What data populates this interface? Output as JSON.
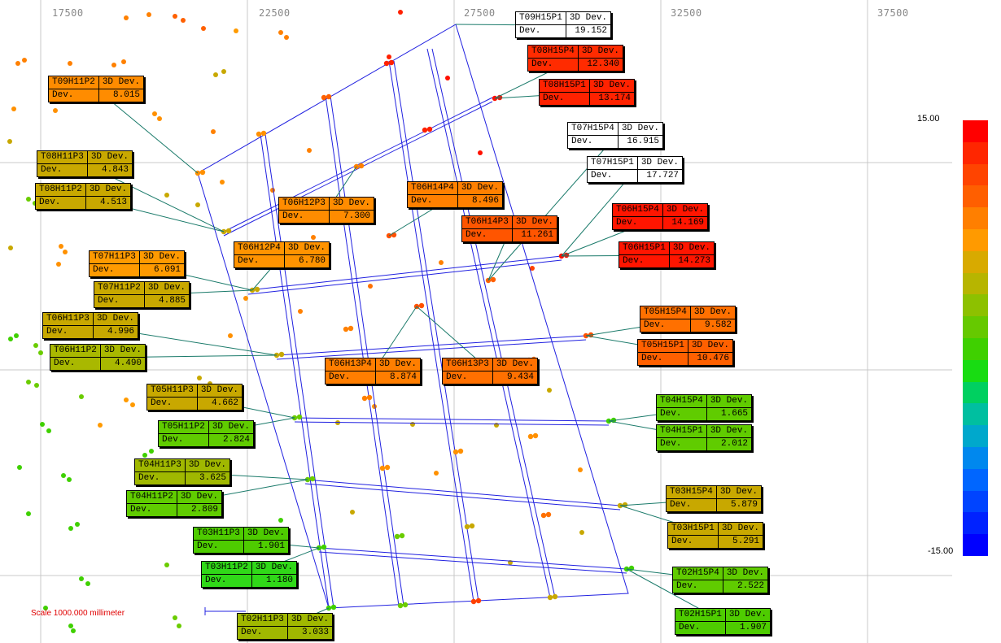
{
  "axis": {
    "x_ticks": [
      "17500",
      "22500",
      "27500",
      "32500",
      "37500"
    ]
  },
  "scale": {
    "label": "Scale 1000.000 millimeter"
  },
  "legend": {
    "max_label": "15.00",
    "min_label": "-15.00",
    "colors": [
      "#ff0000",
      "#ff2600",
      "#ff4400",
      "#ff5f00",
      "#ff7f00",
      "#ff9a00",
      "#d8aa00",
      "#b7b500",
      "#8dc100",
      "#66c900",
      "#3fd000",
      "#18dc12",
      "#00d060",
      "#00bfa0",
      "#00a8cc",
      "#0088ee",
      "#0066ff",
      "#0044ff",
      "#0022ff",
      "#0000ff"
    ]
  },
  "callouts": [
    {
      "id": "T09H15P1",
      "header": "3D Dev.",
      "label": "Dev.",
      "value": "19.152",
      "color": "#ffffff"
    },
    {
      "id": "T08H15P4",
      "header": "3D Dev.",
      "label": "Dev.",
      "value": "12.340",
      "color": "#ff2b00"
    },
    {
      "id": "T08H15P1",
      "header": "3D Dev.",
      "label": "Dev.",
      "value": "13.174",
      "color": "#ff2200"
    },
    {
      "id": "T09H11P2",
      "header": "3D Dev.",
      "label": "Dev.",
      "value": "8.015",
      "color": "#ff8c00"
    },
    {
      "id": "T07H15P4",
      "header": "3D Dev.",
      "label": "Dev.",
      "value": "16.915",
      "color": "#ffffff"
    },
    {
      "id": "T07H15P1",
      "header": "3D Dev.",
      "label": "Dev.",
      "value": "17.727",
      "color": "#ffffff"
    },
    {
      "id": "T08H11P3",
      "header": "3D Dev.",
      "label": "Dev.",
      "value": "4.843",
      "color": "#c8a800"
    },
    {
      "id": "T08H11P2",
      "header": "3D Dev.",
      "label": "Dev.",
      "value": "4.513",
      "color": "#c8a800"
    },
    {
      "id": "T06H14P4",
      "header": "3D Dev.",
      "label": "Dev.",
      "value": "8.496",
      "color": "#ff8000"
    },
    {
      "id": "T06H12P3",
      "header": "3D Dev.",
      "label": "Dev.",
      "value": "7.300",
      "color": "#ff8c00"
    },
    {
      "id": "T06H14P3",
      "header": "3D Dev.",
      "label": "Dev.",
      "value": "11.261",
      "color": "#ff5500"
    },
    {
      "id": "T06H15P4",
      "header": "3D Dev.",
      "label": "Dev.",
      "value": "14.169",
      "color": "#ff1500"
    },
    {
      "id": "T06H12P4",
      "header": "3D Dev.",
      "label": "Dev.",
      "value": "6.780",
      "color": "#ff9300"
    },
    {
      "id": "T06H15P1",
      "header": "3D Dev.",
      "label": "Dev.",
      "value": "14.273",
      "color": "#ff1500"
    },
    {
      "id": "T07H11P3",
      "header": "3D Dev.",
      "label": "Dev.",
      "value": "6.091",
      "color": "#ff9a00"
    },
    {
      "id": "T07H11P2",
      "header": "3D Dev.",
      "label": "Dev.",
      "value": "4.885",
      "color": "#c8a800"
    },
    {
      "id": "T05H15P4",
      "header": "3D Dev.",
      "label": "Dev.",
      "value": "9.582",
      "color": "#ff7000"
    },
    {
      "id": "T06H11P3",
      "header": "3D Dev.",
      "label": "Dev.",
      "value": "4.996",
      "color": "#c8a800"
    },
    {
      "id": "T05H15P1",
      "header": "3D Dev.",
      "label": "Dev.",
      "value": "10.476",
      "color": "#ff6000"
    },
    {
      "id": "T06H11P2",
      "header": "3D Dev.",
      "label": "Dev.",
      "value": "4.490",
      "color": "#a9b800"
    },
    {
      "id": "T06H13P4",
      "header": "3D Dev.",
      "label": "Dev.",
      "value": "8.874",
      "color": "#ff7e00"
    },
    {
      "id": "T06H13P3",
      "header": "3D Dev.",
      "label": "Dev.",
      "value": "9.434",
      "color": "#ff7000"
    },
    {
      "id": "T05H11P3",
      "header": "3D Dev.",
      "label": "Dev.",
      "value": "4.662",
      "color": "#c8a800"
    },
    {
      "id": "T04H15P4",
      "header": "3D Dev.",
      "label": "Dev.",
      "value": "1.665",
      "color": "#60cc00"
    },
    {
      "id": "T05H11P2",
      "header": "3D Dev.",
      "label": "Dev.",
      "value": "2.824",
      "color": "#60cc00"
    },
    {
      "id": "T04H15P1",
      "header": "3D Dev.",
      "label": "Dev.",
      "value": "2.012",
      "color": "#60cc00"
    },
    {
      "id": "T04H11P3",
      "header": "3D Dev.",
      "label": "Dev.",
      "value": "3.625",
      "color": "#a0b800"
    },
    {
      "id": "T03H15P4",
      "header": "3D Dev.",
      "label": "Dev.",
      "value": "5.879",
      "color": "#c8a800"
    },
    {
      "id": "T04H11P2",
      "header": "3D Dev.",
      "label": "Dev.",
      "value": "2.809",
      "color": "#60cc00"
    },
    {
      "id": "T03H15P1",
      "header": "3D Dev.",
      "label": "Dev.",
      "value": "5.291",
      "color": "#c8a800"
    },
    {
      "id": "T03H11P3",
      "header": "3D Dev.",
      "label": "Dev.",
      "value": "1.901",
      "color": "#4ecc00"
    },
    {
      "id": "T02H15P4",
      "header": "3D Dev.",
      "label": "Dev.",
      "value": "2.522",
      "color": "#60cc00"
    },
    {
      "id": "T03H11P2",
      "header": "3D Dev.",
      "label": "Dev.",
      "value": "1.180",
      "color": "#30d818"
    },
    {
      "id": "T02H15P1",
      "header": "3D Dev.",
      "label": "Dev.",
      "value": "1.907",
      "color": "#4ecc00"
    },
    {
      "id": "T02H11P3",
      "header": "3D Dev.",
      "label": "Dev.",
      "value": "3.033",
      "color": "#a0b800"
    }
  ]
}
